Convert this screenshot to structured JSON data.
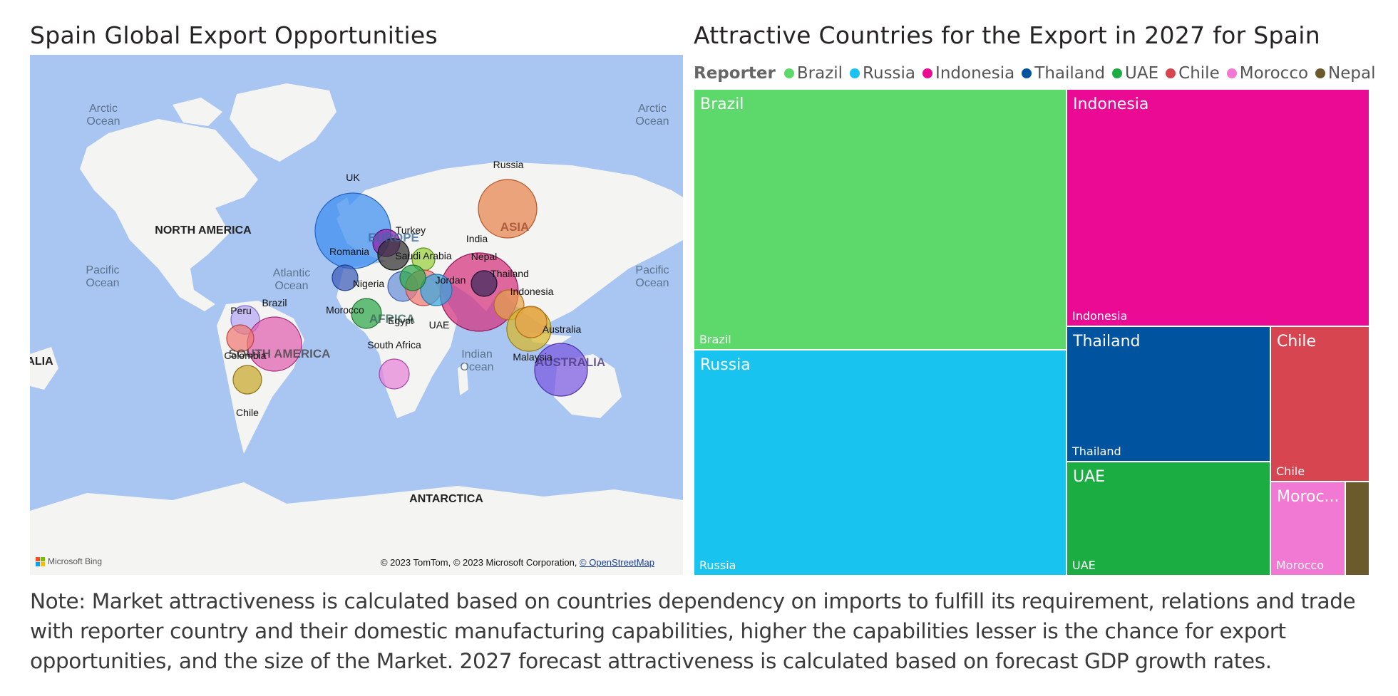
{
  "map": {
    "title": "Spain Global Export Opportunities",
    "oceans": [
      {
        "name": "arctic-ocean-left",
        "label": "Arctic\nOcean"
      },
      {
        "name": "arctic-ocean-right",
        "label": "Arctic\nOcean"
      },
      {
        "name": "atlantic-ocean",
        "label": "Atlantic\nOcean"
      },
      {
        "name": "pacific-ocean-left",
        "label": "Pacific\nOcean"
      },
      {
        "name": "pacific-ocean-right",
        "label": "Pacific\nOcean"
      },
      {
        "name": "indian-ocean",
        "label": "Indian\nOcean"
      }
    ],
    "continents": {
      "north_america": "NORTH AMERICA",
      "south_america": "SOUTH AMERICA",
      "europe": "EUROPE",
      "asia": "ASIA",
      "africa": "AFRICA",
      "australia": "AUSTRALIA",
      "antarctica": "ANTARCTICA",
      "edge_left": "ALIA"
    },
    "bubbles": [
      {
        "label": "UK",
        "color": "#3d8ff0"
      },
      {
        "label": "Russia",
        "color": "#e8834c"
      },
      {
        "label": "Turkey",
        "color": "#8a1fa6"
      },
      {
        "label": "Romania",
        "color": "#303030"
      },
      {
        "label": "Saudi Arabia",
        "color": "#9ad03a"
      },
      {
        "label": "India",
        "color": "#d6307c"
      },
      {
        "label": "Nepal",
        "color": "#3a2a5a"
      },
      {
        "label": "Thailand",
        "color": "#3a2a5a"
      },
      {
        "label": "Jordan",
        "color": "#38a8e0"
      },
      {
        "label": "Indonesia",
        "color": "#e8a24a"
      },
      {
        "label": "Nigeria",
        "color": "#3b5db8"
      },
      {
        "label": "Morocco",
        "color": "#2ea84a"
      },
      {
        "label": "Egypt",
        "color": "#6a8fd8"
      },
      {
        "label": "UAE",
        "color": "#2ea84a"
      },
      {
        "label": "South Africa",
        "color": "#e884d8"
      },
      {
        "label": "Australia",
        "color": "#d8b82a"
      },
      {
        "label": "Malaysia",
        "color": "#e8a24a"
      },
      {
        "label": "Peru",
        "color": "#b6a6f4"
      },
      {
        "label": "Brazil",
        "color": "#e060b0"
      },
      {
        "label": "Colombia",
        "color": "#f07a72"
      },
      {
        "label": "Chile",
        "color": "#c8a82a"
      }
    ],
    "bing_text": "Microsoft Bing",
    "copyright": "© 2023 TomTom, © 2023 Microsoft Corporation, ",
    "osm_link": "© OpenStreetMap"
  },
  "treemap": {
    "title": "Attractive Countries for the Export in 2027 for Spain",
    "legend_title": "Reporter",
    "items": [
      {
        "label": "Brazil",
        "color": "#5dd86a"
      },
      {
        "label": "Russia",
        "color": "#19c3f0"
      },
      {
        "label": "Indonesia",
        "color": "#eb0a94"
      },
      {
        "label": "Thailand",
        "color": "#00549f"
      },
      {
        "label": "UAE",
        "color": "#1cad42"
      },
      {
        "label": "Chile",
        "color": "#d64550"
      },
      {
        "label": "Morocco",
        "color": "#f279d3"
      },
      {
        "label": "Nepal",
        "color": "#6b5a2b"
      }
    ],
    "tiles": {
      "brazil": {
        "title": "Brazil",
        "sub": "Brazil"
      },
      "russia": {
        "title": "Russia",
        "sub": "Russia"
      },
      "indonesia": {
        "title": "Indonesia",
        "sub": "Indonesia"
      },
      "thailand": {
        "title": "Thailand",
        "sub": "Thailand"
      },
      "uae": {
        "title": "UAE",
        "sub": "UAE"
      },
      "chile": {
        "title": "Chile",
        "sub": "Chile"
      },
      "morocco": {
        "title": "Moroc...",
        "sub": "Morocco"
      },
      "nepal": {
        "title": "",
        "sub": ""
      }
    }
  },
  "note": "Note: Market attractiveness is calculated based on countries dependency on imports to fulfill its requirement, relations and trade with reporter country and their domestic manufacturing capabilities, higher the capabilities lesser is the chance for export opportunities, and the size of the Market. 2027 forecast attractiveness is calculated based on forecast GDP growth rates."
}
